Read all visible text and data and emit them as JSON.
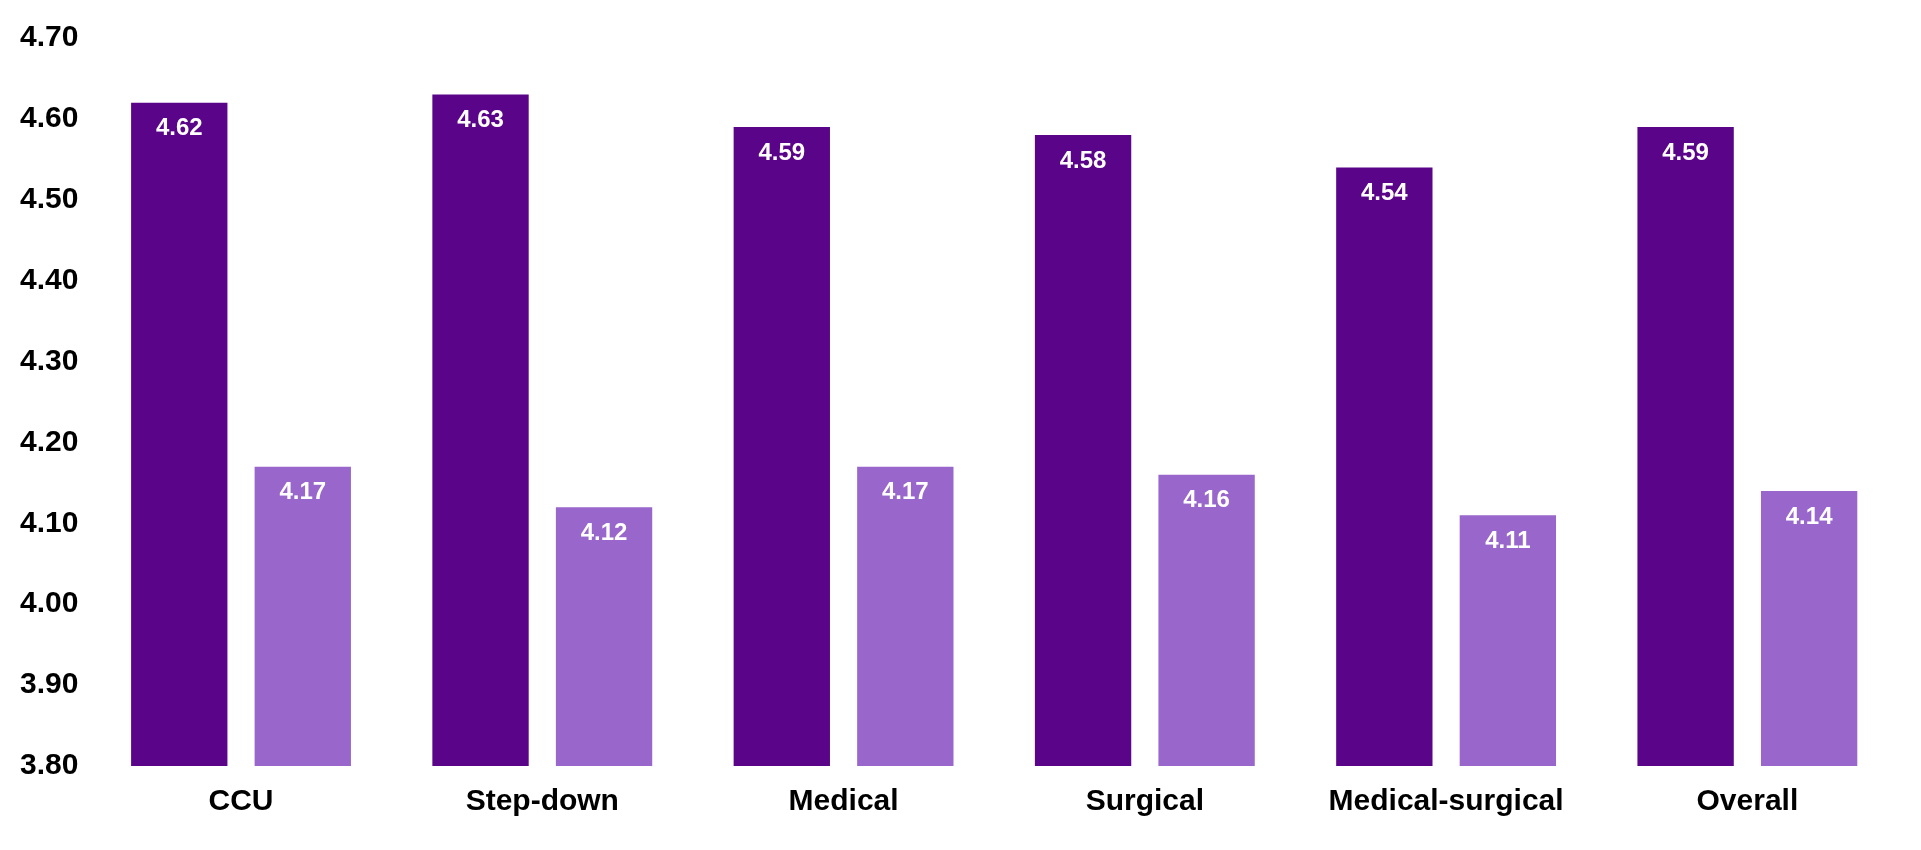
{
  "chart_data": {
    "type": "bar",
    "categories": [
      "CCU",
      "Step-down",
      "Medical",
      "Surgical",
      "Medical-surgical",
      "Overall"
    ],
    "series": [
      {
        "color": "#5a0589",
        "values": [
          4.62,
          4.63,
          4.59,
          4.58,
          4.54,
          4.59
        ]
      },
      {
        "color": "#9966cc",
        "values": [
          4.17,
          4.12,
          4.17,
          4.16,
          4.11,
          4.14
        ]
      }
    ],
    "ylim": [
      3.8,
      4.7
    ],
    "yticks": [
      {
        "value": 3.8,
        "label": "3.80"
      },
      {
        "value": 3.9,
        "label": "3.90"
      },
      {
        "value": 4.0,
        "label": "4.00"
      },
      {
        "value": 4.1,
        "label": "4.10"
      },
      {
        "value": 4.2,
        "label": "4.20"
      },
      {
        "value": 4.3,
        "label": "4.30"
      },
      {
        "value": 4.4,
        "label": "4.40"
      },
      {
        "value": 4.5,
        "label": "4.50"
      },
      {
        "value": 4.6,
        "label": "4.60"
      },
      {
        "value": 4.7,
        "label": "4.70"
      }
    ],
    "data_labels": true,
    "grid": false,
    "legend": false
  }
}
